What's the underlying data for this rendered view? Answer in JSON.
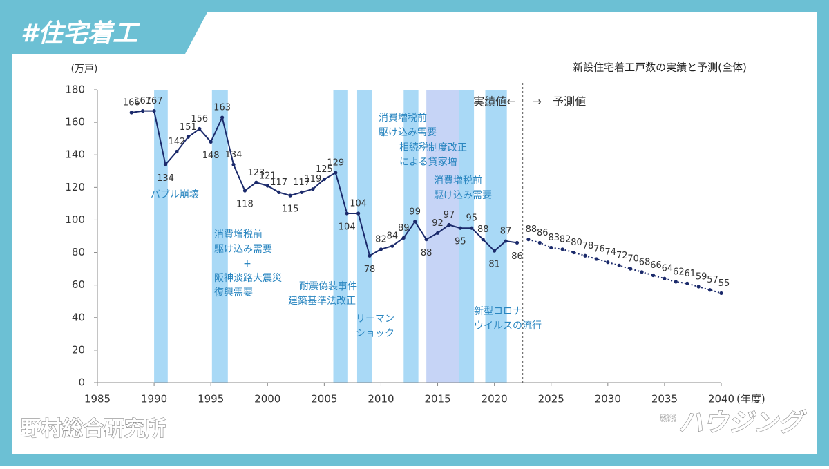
{
  "header": {
    "tag": "#住宅着工"
  },
  "footer": {
    "source": "野村総合研究所",
    "logo_small": "新築",
    "logo": "ハウジング"
  },
  "chart_data": {
    "type": "line",
    "title": "新設住宅着工戸数の実績と予測(全体)",
    "y_label": "(万戸)",
    "x_label": "(年度)",
    "xlim": [
      1985,
      2040
    ],
    "xticks": [
      1985,
      1990,
      1995,
      2000,
      2005,
      2010,
      2015,
      2020,
      2025,
      2030,
      2035,
      2040
    ],
    "ylim": [
      0,
      180
    ],
    "yticks": [
      0,
      20,
      40,
      60,
      80,
      100,
      120,
      140,
      160,
      180
    ],
    "series": [
      {
        "color": "#1b2a6b",
        "line_style": "solid",
        "x": [
          1988,
          1989,
          1990,
          1991,
          1992,
          1993,
          1994,
          1995,
          1996,
          1997,
          1998,
          1999,
          2000,
          2001,
          2002,
          2003,
          2004,
          2005,
          2006,
          2007,
          2008,
          2009,
          2010,
          2011,
          2012,
          2013,
          2014,
          2015,
          2016,
          2017,
          2018,
          2019,
          2020,
          2021,
          2022
        ],
        "values": [
          166,
          167,
          167,
          134,
          142,
          151,
          156,
          148,
          163,
          134,
          118,
          123,
          121,
          117,
          115,
          117,
          119,
          125,
          129,
          104,
          104,
          78,
          82,
          84,
          89,
          99,
          88,
          92,
          97,
          95,
          95,
          88,
          81,
          87,
          86
        ]
      },
      {
        "color": "#1b2a6b",
        "line_style": "dotted",
        "x": [
          2023,
          2024,
          2025,
          2026,
          2027,
          2028,
          2029,
          2030,
          2031,
          2032,
          2033,
          2034,
          2035,
          2036,
          2037,
          2038,
          2039,
          2040
        ],
        "values": [
          88,
          86,
          83,
          82,
          80,
          78,
          76,
          74,
          72,
          70,
          68,
          66,
          64,
          62,
          61,
          59,
          57,
          55
        ]
      }
    ],
    "divider_x": 2022.5,
    "divider_labels": [
      "実績値←",
      "→　予測値"
    ],
    "bands": [
      {
        "x": [
          1990,
          1991.2
        ],
        "color": "#a9d9f6"
      },
      {
        "x": [
          1995.1,
          1996.5
        ],
        "color": "#a9d9f6"
      },
      {
        "x": [
          2005.8,
          2007.1
        ],
        "color": "#a9d9f6"
      },
      {
        "x": [
          2007.9,
          2009.2
        ],
        "color": "#a9d9f6"
      },
      {
        "x": [
          2012,
          2013.3
        ],
        "color": "#a9d9f6"
      },
      {
        "x": [
          2014,
          2016.9
        ],
        "color": "#c6d4f6"
      },
      {
        "x": [
          2016.9,
          2018.2
        ],
        "color": "#a9d9f6"
      },
      {
        "x": [
          2019.2,
          2021.1
        ],
        "color": "#a9d9f6"
      }
    ],
    "annotations": [
      [
        "バブル崩壊"
      ],
      [
        "消費増税前",
        "駆け込み需要",
        "+",
        "阪神淡路大震災",
        "復興需要"
      ],
      [
        "耐震偽装事件",
        "建築基準法改正"
      ],
      [
        "リーマン",
        "ショック"
      ],
      [
        "消費増税前",
        "駆け込み需要"
      ],
      [
        "相続税制度改正",
        "による貸家増"
      ],
      [
        "消費増税前",
        "駆け込み需要"
      ],
      [
        "新型コロナ",
        "ウイルスの流行"
      ]
    ]
  }
}
